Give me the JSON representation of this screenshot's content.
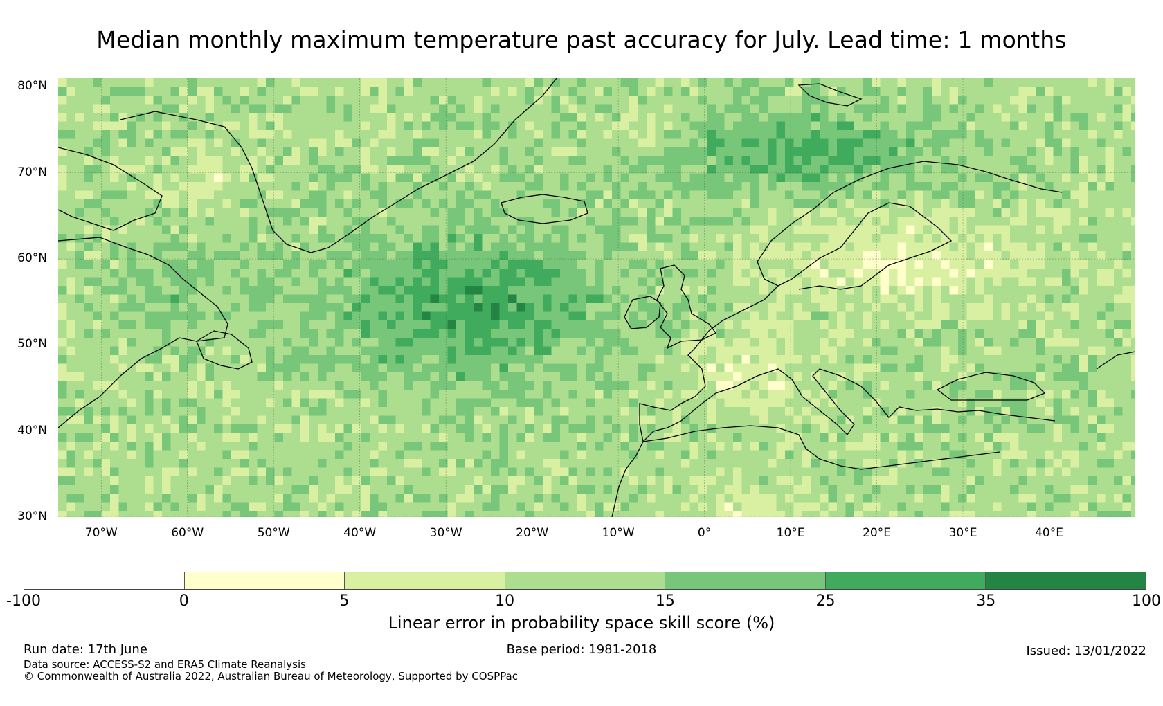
{
  "title": "Median monthly maximum temperature past accuracy for July. Lead time: 1 months",
  "map": {
    "lat_labels": [
      "80°N",
      "70°N",
      "60°N",
      "50°N",
      "40°N",
      "30°N"
    ],
    "lon_labels": [
      "70°W",
      "60°W",
      "50°W",
      "40°W",
      "30°W",
      "20°W",
      "10°W",
      "0°",
      "10°E",
      "20°E",
      "30°E",
      "40°E"
    ],
    "lat_range": [
      30,
      81
    ],
    "lon_range": [
      -75,
      50
    ]
  },
  "colorbar": {
    "ticks": [
      "-100",
      "0",
      "5",
      "10",
      "15",
      "25",
      "35",
      "100"
    ],
    "colors": [
      "#ffffff",
      "#ffffcc",
      "#d9f0a3",
      "#addd8e",
      "#78c679",
      "#41ab5d",
      "#238443"
    ],
    "label": "Linear error in probability space skill score (%)"
  },
  "footer": {
    "run_date": "Run date: 17th June",
    "base_period": "Base period: 1981-2018",
    "issued": "Issued: 13/01/2022",
    "data_source": "Data source: ACCESS-S2 and ERA5 Climate Reanalysis",
    "copyright": "© Commonwealth of Australia 2022, Australian Bureau of Meteorology, Supported by COSPPac"
  }
}
